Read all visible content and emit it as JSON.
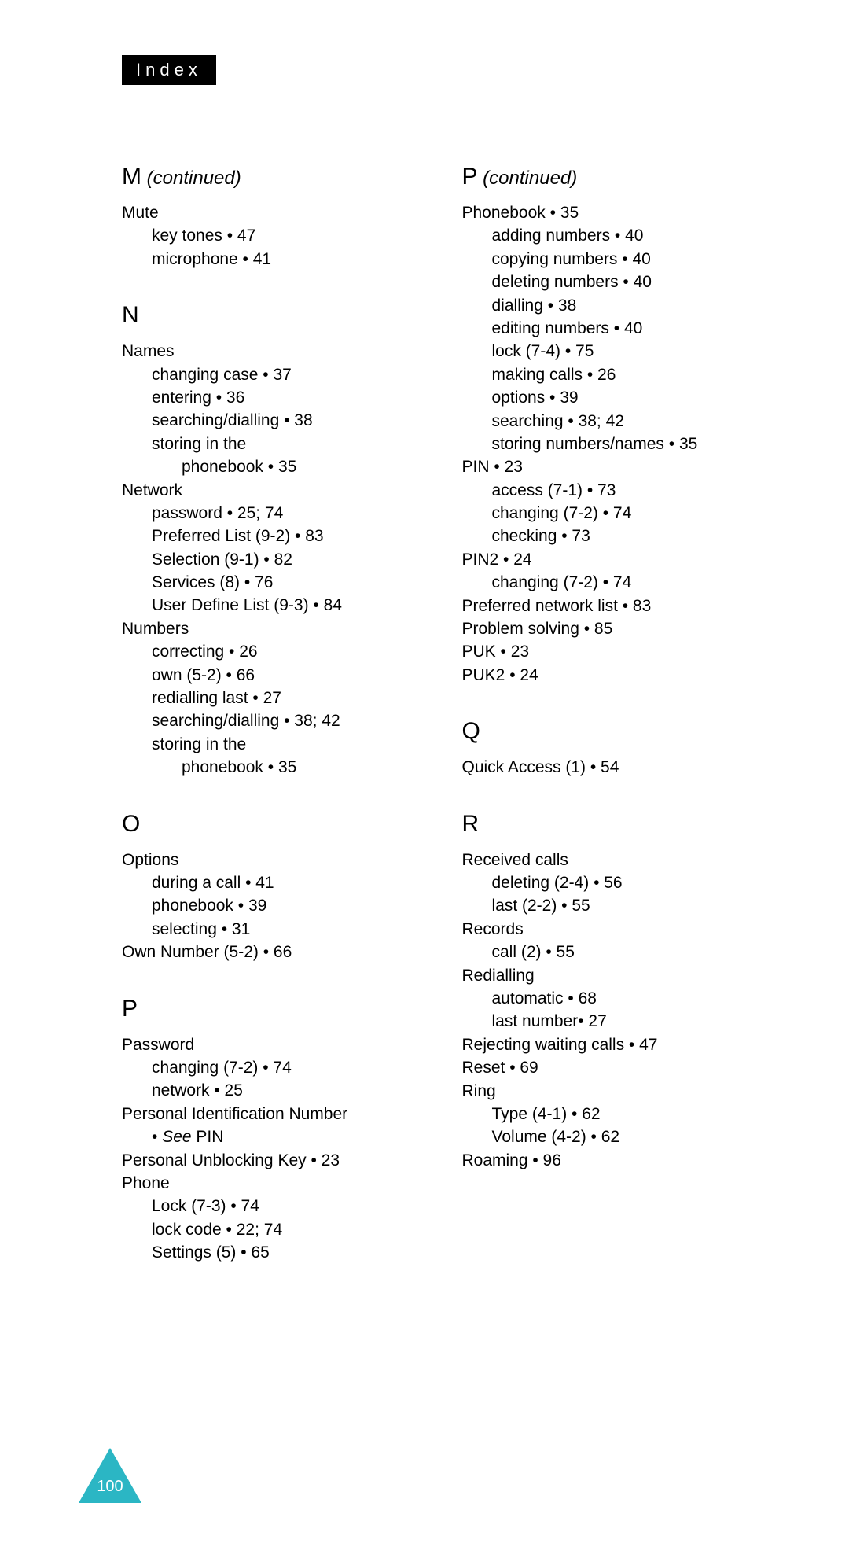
{
  "header": {
    "tab": "Index"
  },
  "pageNumber": "100",
  "colors": {
    "tab_bg": "#000000",
    "tab_fg": "#ffffff",
    "triangle": "#2bb6c4",
    "page_bg": "#ffffff",
    "text": "#000000"
  },
  "left": [
    {
      "type": "heading",
      "letter": "M",
      "continued": "(continued)"
    },
    {
      "type": "root",
      "text": "Mute"
    },
    {
      "type": "n1",
      "text": "key tones •  47"
    },
    {
      "type": "n1",
      "text": "microphone •  41"
    },
    {
      "type": "heading",
      "letter": "N",
      "gap": true
    },
    {
      "type": "root",
      "text": "Names"
    },
    {
      "type": "n1",
      "text": "changing case •  37"
    },
    {
      "type": "n1",
      "text": "entering •  36"
    },
    {
      "type": "n1",
      "text": "searching/dialling •  38"
    },
    {
      "type": "n1",
      "text": "storing in the"
    },
    {
      "type": "n2",
      "text": "phonebook •  35"
    },
    {
      "type": "root",
      "text": "Network"
    },
    {
      "type": "n1",
      "text": "password •  25; 74"
    },
    {
      "type": "n1",
      "text": "Preferred List (9-2) •  83"
    },
    {
      "type": "n1",
      "text": "Selection (9-1) •  82"
    },
    {
      "type": "n1",
      "text": "Services (8) •  76"
    },
    {
      "type": "n1",
      "text": "User Define List (9-3) •  84"
    },
    {
      "type": "root",
      "text": "Numbers"
    },
    {
      "type": "n1",
      "text": "correcting •  26"
    },
    {
      "type": "n1",
      "text": "own (5-2) •  66"
    },
    {
      "type": "n1",
      "text": "redialling last •  27"
    },
    {
      "type": "n1",
      "text": "searching/dialling •  38; 42"
    },
    {
      "type": "n1",
      "text": "storing in the"
    },
    {
      "type": "n2",
      "text": "phonebook  • 35"
    },
    {
      "type": "heading",
      "letter": "O",
      "gap": true
    },
    {
      "type": "root",
      "text": "Options"
    },
    {
      "type": "n1",
      "text": "during a call •  41"
    },
    {
      "type": "n1",
      "text": "phonebook •  39"
    },
    {
      "type": "n1",
      "text": "selecting •  31"
    },
    {
      "type": "root",
      "text": "Own Number (5-2) •  66"
    },
    {
      "type": "heading",
      "letter": "P",
      "gap": true
    },
    {
      "type": "root",
      "text": "Password"
    },
    {
      "type": "n1",
      "text": "changing (7-2) •  74"
    },
    {
      "type": "n1",
      "text": "network •  25"
    },
    {
      "type": "root",
      "text": "Personal Identification Number"
    },
    {
      "type": "n1see",
      "pre": "•  ",
      "see": "See",
      "post": " PIN"
    },
    {
      "type": "root",
      "text": "Personal Unblocking Key •  23"
    },
    {
      "type": "root",
      "text": "Phone"
    },
    {
      "type": "n1",
      "text": "Lock (7-3) •  74"
    },
    {
      "type": "n1",
      "text": "lock code •  22; 74"
    },
    {
      "type": "n1",
      "text": "Settings (5) •  65"
    }
  ],
  "right": [
    {
      "type": "heading",
      "letter": "P",
      "continued": "(continued)"
    },
    {
      "type": "root",
      "text": "Phonebook •  35"
    },
    {
      "type": "n1",
      "text": "adding numbers •  40"
    },
    {
      "type": "n1",
      "text": "copying numbers •  40"
    },
    {
      "type": "n1",
      "text": "deleting numbers •  40"
    },
    {
      "type": "n1",
      "text": "dialling •  38"
    },
    {
      "type": "n1",
      "text": "editing numbers •  40"
    },
    {
      "type": "n1",
      "text": "lock (7-4) •  75"
    },
    {
      "type": "n1",
      "text": "making calls •  26"
    },
    {
      "type": "n1",
      "text": "options •  39"
    },
    {
      "type": "n1",
      "text": "searching •  38; 42"
    },
    {
      "type": "n1",
      "text": "storing numbers/names •  35"
    },
    {
      "type": "root",
      "text": "PIN •  23"
    },
    {
      "type": "n1",
      "text": "access (7-1) •  73"
    },
    {
      "type": "n1",
      "text": "changing (7-2) •  74"
    },
    {
      "type": "n1",
      "text": "checking •  73"
    },
    {
      "type": "root",
      "text": "PIN2 •  24"
    },
    {
      "type": "n1",
      "text": "changing (7-2) •  74"
    },
    {
      "type": "root",
      "text": "Preferred network list •  83"
    },
    {
      "type": "root",
      "text": "Problem solving •  85"
    },
    {
      "type": "root",
      "text": "PUK •  23"
    },
    {
      "type": "root",
      "text": "PUK2 •  24"
    },
    {
      "type": "heading",
      "letter": "Q",
      "gap": true
    },
    {
      "type": "root",
      "text": "Quick Access (1) •  54"
    },
    {
      "type": "heading",
      "letter": "R",
      "gap": true
    },
    {
      "type": "root",
      "text": "Received calls"
    },
    {
      "type": "n1",
      "text": "deleting (2-4) •  56"
    },
    {
      "type": "n1",
      "text": "last (2-2) •  55"
    },
    {
      "type": "root",
      "text": "Records"
    },
    {
      "type": "n1",
      "text": "call (2) •  55"
    },
    {
      "type": "root",
      "text": "Redialling"
    },
    {
      "type": "n1",
      "text": "automatic •  68"
    },
    {
      "type": "n1",
      "text": "last number•  27"
    },
    {
      "type": "root",
      "text": "Rejecting waiting calls •  47"
    },
    {
      "type": "root",
      "text": "Reset •  69"
    },
    {
      "type": "root",
      "text": "Ring"
    },
    {
      "type": "n1",
      "text": "Type (4-1) •  62"
    },
    {
      "type": "n1",
      "text": "Volume (4-2) •  62"
    },
    {
      "type": "root",
      "text": "Roaming •  96"
    }
  ]
}
